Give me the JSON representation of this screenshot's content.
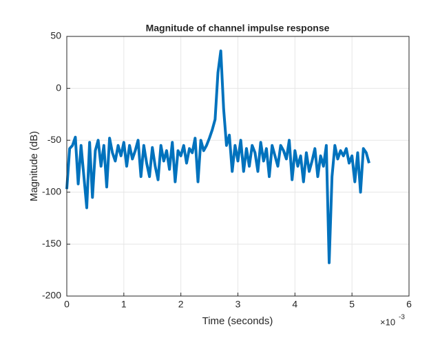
{
  "chart_data": {
    "type": "line",
    "title": "Magnitude of channel impulse response",
    "x_label": "Time (seconds)",
    "y_label": "Magnitude (dB)",
    "x_exponent_base": "×10",
    "x_exponent_power": "-3",
    "xlim": [
      0,
      0.006
    ],
    "ylim": [
      -200,
      50
    ],
    "xticks": [
      0,
      {
        "value": 0.001,
        "label": "1"
      },
      {
        "value": 0.002,
        "label": "2"
      },
      {
        "value": 0.003,
        "label": "3"
      },
      {
        "value": 0.004,
        "label": "4"
      },
      {
        "value": 0.005,
        "label": "5"
      },
      {
        "value": 0.006,
        "label": "6"
      }
    ],
    "yticks": [
      -200,
      -150,
      -100,
      -50,
      0,
      50
    ],
    "grid": true,
    "x": [
      0,
      5e-05,
      0.0001,
      0.00015,
      0.0002,
      0.00025,
      0.0003,
      0.00035,
      0.0004,
      0.00045,
      0.0005,
      0.00055,
      0.0006,
      0.00065,
      0.0007,
      0.00075,
      0.0008,
      0.00085,
      0.0009,
      0.00095,
      0.001,
      0.00105,
      0.0011,
      0.00115,
      0.0012,
      0.00125,
      0.0013,
      0.00135,
      0.0014,
      0.00145,
      0.0015,
      0.00155,
      0.0016,
      0.00165,
      0.0017,
      0.00175,
      0.0018,
      0.00185,
      0.0019,
      0.00195,
      0.002,
      0.00205,
      0.0021,
      0.00215,
      0.0022,
      0.00225,
      0.0023,
      0.00235,
      0.0024,
      0.00245,
      0.0025,
      0.00255,
      0.0026,
      0.00265,
      0.0027,
      0.00275,
      0.0028,
      0.00285,
      0.0029,
      0.00295,
      0.003,
      0.00305,
      0.0031,
      0.00315,
      0.0032,
      0.00325,
      0.0033,
      0.00335,
      0.0034,
      0.00345,
      0.0035,
      0.00355,
      0.0036,
      0.00365,
      0.0037,
      0.00375,
      0.0038,
      0.00385,
      0.0039,
      0.00395,
      0.004,
      0.00405,
      0.0041,
      0.00415,
      0.0042,
      0.00425,
      0.0043,
      0.00435,
      0.0044,
      0.00445,
      0.0045,
      0.00455,
      0.0046,
      0.00465,
      0.0047,
      0.00475,
      0.0048,
      0.00485,
      0.0049,
      0.00495,
      0.005,
      0.00505,
      0.0051,
      0.00515,
      0.0052,
      0.00525,
      0.0053
    ],
    "series": [
      {
        "color": "#0072bd",
        "values": [
          -97,
          -58,
          -55,
          -47,
          -92,
          -55,
          -85,
          -115,
          -52,
          -105,
          -60,
          -50,
          -75,
          -55,
          -95,
          -48,
          -62,
          -70,
          -55,
          -65,
          -52,
          -75,
          -55,
          -68,
          -60,
          -50,
          -85,
          -55,
          -72,
          -85,
          -57,
          -75,
          -88,
          -55,
          -70,
          -60,
          -78,
          -52,
          -90,
          -60,
          -65,
          -55,
          -72,
          -58,
          -62,
          -48,
          -90,
          -50,
          -60,
          -55,
          -48,
          -40,
          -30,
          15,
          36,
          -20,
          -55,
          -45,
          -80,
          -55,
          -70,
          -50,
          -80,
          -58,
          -75,
          -55,
          -62,
          -80,
          -52,
          -70,
          -58,
          -85,
          -55,
          -65,
          -75,
          -55,
          -60,
          -68,
          -50,
          -88,
          -60,
          -75,
          -65,
          -90,
          -62,
          -80,
          -70,
          -58,
          -85,
          -65,
          -75,
          -55,
          -168,
          -85,
          -55,
          -68,
          -60,
          -65,
          -58,
          -72,
          -65,
          -90,
          -62,
          -100,
          -58,
          -62,
          -72
        ]
      }
    ]
  }
}
